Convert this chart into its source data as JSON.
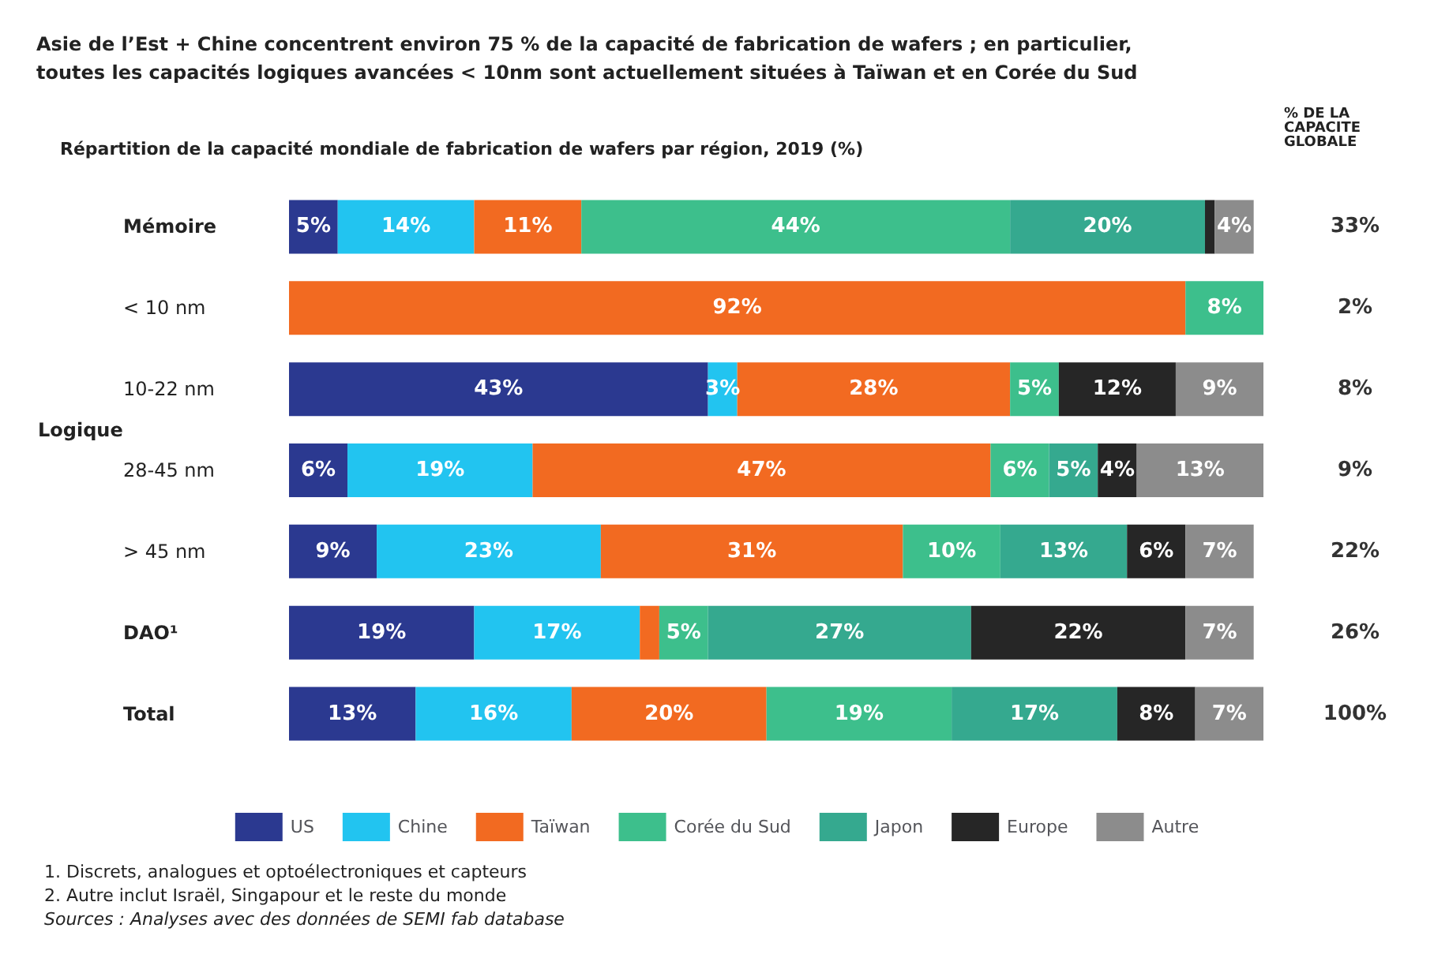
{
  "chart_data": {
    "type": "bar",
    "orientation": "horizontal",
    "stacked": true,
    "title": "Asie de l’Est + Chine concentrent environ 75 % de la capacité de fabrication de wafers ; en particulier,\ntoutes les capacités logiques avancées < 10nm sont actuellement situées à Taïwan et en Corée du Sud",
    "subtitle": "Répartition de la capacité mondiale de fabrication de wafers par région, 2019 (%)",
    "categories": [
      "Mémoire",
      "< 10 nm",
      "10-22 nm",
      "28-45 nm",
      "> 45 nm",
      "DAO¹",
      "Total"
    ],
    "series": [
      {
        "name": "US",
        "color": "#2b3990",
        "values": [
          5,
          null,
          43,
          6,
          9,
          19,
          13
        ],
        "value_labels": [
          "5%",
          null,
          "43%",
          "6%",
          "9%",
          "19%",
          "13%"
        ]
      },
      {
        "name": "Chine",
        "color": "#22c4f0",
        "values": [
          14,
          null,
          3,
          19,
          23,
          17,
          16
        ],
        "value_labels": [
          "14%",
          null,
          "3%",
          "19%",
          "23%",
          "17%",
          "16%"
        ]
      },
      {
        "name": "Taïwan",
        "color": "#f26a21",
        "values": [
          11,
          92,
          28,
          47,
          31,
          2,
          20
        ],
        "value_labels": [
          "11%",
          "92%",
          "28%",
          "47%",
          "31%",
          null,
          "20%"
        ]
      },
      {
        "name": "Corée du Sud",
        "color": "#3dbf8c",
        "values": [
          44,
          8,
          5,
          6,
          10,
          5,
          19
        ],
        "value_labels": [
          "44%",
          "8%",
          "5%",
          "6%",
          "10%",
          "5%",
          "19%"
        ]
      },
      {
        "name": "Japon",
        "color": "#35a98f",
        "values": [
          20,
          null,
          null,
          5,
          13,
          27,
          17
        ],
        "value_labels": [
          "20%",
          null,
          null,
          "5%",
          "13%",
          "27%",
          "17%"
        ]
      },
      {
        "name": "Europe",
        "color": "#262626",
        "values": [
          1,
          null,
          12,
          4,
          6,
          22,
          8
        ],
        "value_labels": [
          null,
          null,
          "12%",
          "4%",
          "6%",
          "22%",
          "8%"
        ]
      },
      {
        "name": "Autre",
        "color": "#8c8c8c",
        "values": [
          4,
          null,
          9,
          13,
          7,
          7,
          7
        ],
        "value_labels": [
          "4%",
          null,
          "9%",
          "13%",
          "7%",
          "7%",
          "7%"
        ]
      }
    ],
    "legend": "bottom",
    "annotations": [
      "Logique",
      "% DE LA CAPACITE GLOBALE",
      "33%",
      "2%",
      "8%",
      "9%",
      "22%",
      "26%",
      "100%",
      "1. Discrets, analogues et optoélectroniques et capteurs",
      "2. Autre inclut Israël, Singapour et le reste du monde",
      "Sources : Analyses avec des données de SEMI fab database"
    ]
  }
}
